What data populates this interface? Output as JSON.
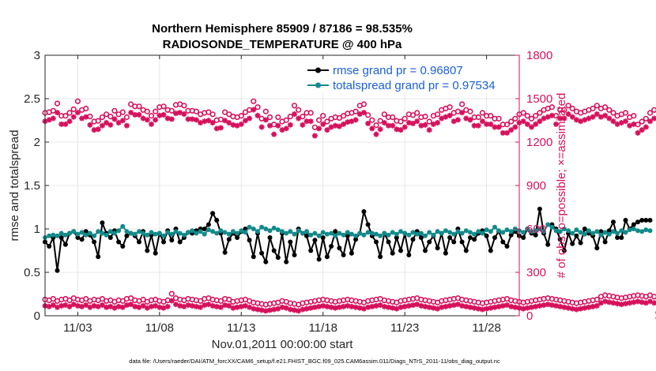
{
  "chart_data": {
    "type": "line",
    "title_line1": "Northern Hemisphere 85909 / 87186 = 98.535%",
    "title_line2": "RADIOSONDE_TEMPERATURE @ 400 hPa",
    "xlabel": "Nov.01,2011 00:00:00 start",
    "ylabel_left": "rmse and totalspread",
    "ylabel_right": "# of obs: o=possible; ×=assimilated",
    "footnote": "data file: /Users/raeder/DAI/ATM_forcXX/CAM6_setup/f.e21.FHIST_BGC.f09_025.CAM6assim.011/Diags_NTrS_2011-11/obs_diag_output.nc",
    "xlim": [
      1,
      30
    ],
    "ylim_left": [
      0,
      3
    ],
    "ylim_right": [
      0,
      1800
    ],
    "x_ticks": [
      3,
      8,
      13,
      18,
      23,
      28
    ],
    "x_tick_labels": [
      "11/03",
      "11/08",
      "11/13",
      "11/18",
      "11/23",
      "11/28"
    ],
    "y_left_ticks": [
      0,
      0.5,
      1,
      1.5,
      2,
      2.5,
      3
    ],
    "y_left_tick_labels": [
      "0",
      "0.5",
      "1",
      "1.5",
      "2",
      "2.5",
      "3"
    ],
    "y_right_ticks": [
      0,
      300,
      600,
      900,
      1200,
      1500,
      1800
    ],
    "y_right_tick_labels": [
      "0",
      "300",
      "600",
      "900",
      "1200",
      "1500",
      "1800"
    ],
    "grid": true,
    "legend": {
      "location": "top-right",
      "rmse_label": "rmse grand pr = 0.96807",
      "spread_label": "totalspread grand pr = 0.97534"
    },
    "colors": {
      "rmse": "#000000",
      "totalspread": "#138a8a",
      "obs": "#d6115c",
      "grid": "#e0e0e0",
      "legend_text": "#1a5fd6"
    },
    "x_start": 1,
    "x_step": 0.25,
    "series": [
      {
        "name": "rmse",
        "axis": "left",
        "values": [
          0.85,
          0.8,
          0.9,
          0.52,
          0.9,
          0.82,
          0.95,
          0.97,
          0.9,
          0.88,
          0.97,
          0.93,
          0.85,
          0.68,
          1.07,
          0.95,
          0.9,
          0.98,
          0.85,
          0.8,
          0.92,
          0.95,
          0.92,
          0.85,
          0.97,
          0.75,
          0.93,
          0.72,
          0.95,
          0.85,
          0.98,
          0.87,
          1.0,
          0.85,
          0.9,
          0.96,
          0.95,
          0.98,
          1.0,
          1.0,
          1.05,
          1.18,
          1.1,
          0.95,
          0.73,
          0.88,
          0.95,
          0.9,
          0.97,
          1.0,
          0.87,
          0.68,
          0.95,
          0.72,
          0.62,
          0.9,
          0.75,
          0.67,
          0.95,
          0.62,
          0.85,
          0.7,
          1.0,
          0.95,
          0.92,
          0.75,
          0.87,
          0.65,
          0.9,
          0.68,
          0.8,
          0.97,
          0.78,
          0.7,
          0.92,
          0.72,
          0.88,
          0.95,
          1.2,
          1.05,
          0.92,
          0.85,
          0.68,
          0.95,
          0.85,
          0.72,
          0.9,
          0.75,
          0.95,
          0.7,
          0.88,
          0.97,
          0.9,
          0.75,
          0.85,
          0.92,
          0.78,
          0.95,
          0.72,
          0.9,
          0.85,
          1.0,
          0.85,
          0.75,
          0.9,
          0.88,
          0.95,
          0.98,
          0.92,
          0.75,
          0.9,
          0.97,
          0.85,
          0.8,
          0.93,
          0.97,
          0.92,
          0.9,
          1.0,
          0.95,
          0.93,
          1.23,
          0.95,
          0.82,
          1.05,
          1.0,
          0.88,
          0.75,
          0.95,
          0.83,
          0.92,
          0.84,
          1.0,
          0.95,
          0.92,
          0.78,
          0.97,
          0.85,
          0.98,
          1.08,
          0.9,
          0.9,
          1.1,
          1.0,
          1.05,
          1.08,
          1.1,
          1.1,
          1.1
        ]
      },
      {
        "name": "totalspread",
        "axis": "left",
        "values": [
          0.9,
          0.92,
          0.93,
          0.92,
          0.95,
          0.93,
          0.95,
          0.97,
          0.94,
          0.96,
          0.93,
          0.95,
          0.92,
          0.97,
          0.95,
          0.93,
          0.97,
          0.95,
          0.98,
          1.03,
          0.97,
          0.95,
          0.94,
          0.97,
          0.95,
          0.93,
          0.96,
          0.94,
          0.95,
          0.92,
          0.96,
          0.94,
          0.97,
          0.95,
          0.93,
          0.96,
          0.98,
          0.95,
          0.97,
          0.94,
          0.99,
          0.97,
          0.95,
          0.98,
          0.96,
          0.94,
          0.97,
          0.95,
          0.98,
          0.96,
          1.02,
          1.0,
          0.97,
          1.02,
          1.0,
          0.98,
          1.01,
          0.99,
          0.97,
          0.95,
          0.97,
          0.94,
          0.98,
          0.95,
          0.97,
          0.93,
          0.95,
          0.92,
          0.96,
          0.94,
          0.95,
          0.92,
          0.95,
          0.93,
          0.96,
          0.94,
          0.92,
          0.95,
          0.93,
          0.96,
          0.95,
          0.94,
          0.92,
          0.95,
          0.93,
          0.96,
          0.94,
          0.97,
          0.95,
          0.93,
          0.96,
          0.94,
          0.95,
          0.92,
          0.96,
          0.93,
          0.97,
          0.95,
          0.98,
          0.96,
          0.94,
          0.97,
          0.95,
          0.98,
          0.96,
          0.94,
          0.97,
          0.95,
          0.99,
          0.97,
          1.02,
          0.98,
          0.96,
          0.99,
          0.97,
          1.0,
          0.98,
          0.96,
          1.0,
          0.97,
          0.98,
          1.0,
          0.97,
          1.05,
          1.02,
          0.98,
          0.97,
          1.0,
          0.98,
          0.95,
          0.99,
          0.96,
          0.94,
          0.98,
          0.95,
          0.97,
          0.93,
          0.96,
          0.94,
          0.97,
          0.95,
          0.98,
          0.96,
          0.99,
          1.0,
          0.98,
          0.97,
          0.99,
          0.98
        ]
      },
      {
        "name": "obs_possible",
        "axis": "right",
        "marker": "circle",
        "values": [
          1380,
          1385,
          1395,
          1445,
          1360,
          1360,
          1380,
          1405,
          1460,
          1400,
          1410,
          1355,
          1320,
          1325,
          1350,
          1370,
          1355,
          1395,
          1370,
          1385,
          1350,
          1440,
          1425,
          1425,
          1400,
          1390,
          1360,
          1390,
          1420,
          1425,
          1400,
          1395,
          1435,
          1440,
          1430,
          1395,
          1395,
          1390,
          1370,
          1380,
          1385,
          1370,
          1330,
          1335,
          1385,
          1370,
          1355,
          1350,
          1360,
          1385,
          1400,
          1460,
          1420,
          1340,
          1390,
          1350,
          1300,
          1350,
          1320,
          1330,
          1355,
          1430,
          1400,
          1355,
          1380,
          1380,
          1280,
          1330,
          1360,
          1320,
          1340,
          1350,
          1345,
          1360,
          1375,
          1380,
          1390,
          1430,
          1440,
          1365,
          1330,
          1295,
          1325,
          1370,
          1350,
          1350,
          1325,
          1320,
          1340,
          1370,
          1365,
          1380,
          1350,
          1355,
          1320,
          1360,
          1370,
          1400,
          1410,
          1420,
          1380,
          1390,
          1440,
          1400,
          1390,
          1350,
          1350,
          1380,
          1360,
          1360,
          1340,
          1340,
          1300,
          1300,
          1320,
          1340,
          1370,
          1380,
          1360,
          1340,
          1360,
          1380,
          1400,
          1410,
          1420,
          1360,
          1400,
          1400,
          1430,
          1410,
          1390,
          1380,
          1390,
          1400,
          1410,
          1430,
          1410,
          1420,
          1400,
          1380,
          1360,
          1370,
          1380,
          1350,
          1360,
          1300,
          1320,
          1340,
          1380,
          1400
        ]
      },
      {
        "name": "obs_assimilated",
        "axis": "right",
        "marker": "asterisk",
        "values": [
          1360,
          1370,
          1380,
          1420,
          1340,
          1340,
          1360,
          1390,
          1420,
          1380,
          1390,
          1335,
          1300,
          1305,
          1330,
          1350,
          1335,
          1375,
          1350,
          1365,
          1330,
          1420,
          1405,
          1405,
          1380,
          1370,
          1340,
          1370,
          1400,
          1405,
          1380,
          1375,
          1415,
          1420,
          1410,
          1375,
          1375,
          1370,
          1350,
          1360,
          1365,
          1350,
          1310,
          1315,
          1365,
          1350,
          1335,
          1330,
          1340,
          1365,
          1380,
          1440,
          1400,
          1320,
          1370,
          1330,
          1270,
          1330,
          1300,
          1310,
          1335,
          1410,
          1380,
          1335,
          1360,
          1360,
          1260,
          1310,
          1340,
          1300,
          1320,
          1330,
          1325,
          1340,
          1355,
          1360,
          1370,
          1410,
          1420,
          1345,
          1310,
          1270,
          1305,
          1350,
          1330,
          1330,
          1305,
          1300,
          1320,
          1350,
          1345,
          1360,
          1330,
          1335,
          1300,
          1340,
          1350,
          1380,
          1390,
          1400,
          1360,
          1370,
          1420,
          1380,
          1370,
          1330,
          1330,
          1360,
          1340,
          1340,
          1320,
          1320,
          1280,
          1280,
          1300,
          1320,
          1350,
          1360,
          1340,
          1320,
          1340,
          1360,
          1380,
          1390,
          1400,
          1340,
          1380,
          1380,
          1410,
          1390,
          1370,
          1360,
          1370,
          1380,
          1390,
          1410,
          1390,
          1400,
          1380,
          1360,
          1340,
          1350,
          1360,
          1330,
          1340,
          1280,
          1300,
          1320,
          1360,
          1380
        ]
      },
      {
        "name": "obs_low_possible",
        "axis": "right",
        "marker": "circle",
        "values": [
          90,
          85,
          95,
          80,
          90,
          95,
          85,
          100,
          90,
          85,
          95,
          80,
          90,
          85,
          95,
          80,
          85,
          75,
          85,
          80,
          95,
          100,
          85,
          80,
          90,
          75,
          85,
          90,
          80,
          75,
          85,
          130,
          100,
          90,
          85,
          95,
          90,
          85,
          80,
          95,
          100,
          90,
          85,
          80,
          95,
          90,
          75,
          80,
          85,
          90,
          80,
          70,
          65,
          60,
          55,
          60,
          65,
          70,
          80,
          75,
          65,
          60,
          55,
          65,
          70,
          75,
          80,
          85,
          90,
          85,
          80,
          75,
          80,
          85,
          90,
          85,
          80,
          75,
          70,
          80,
          85,
          90,
          95,
          85,
          80,
          75,
          70,
          80,
          85,
          90,
          95,
          100,
          90,
          85,
          80,
          75,
          70,
          80,
          85,
          90,
          95,
          100,
          90,
          85,
          80,
          75,
          70,
          65,
          70,
          75,
          80,
          85,
          90,
          95,
          85,
          80,
          75,
          70,
          75,
          80,
          85,
          90,
          95,
          100,
          95,
          90,
          85,
          80,
          75,
          70,
          65,
          70,
          75,
          80,
          85,
          90,
          110,
          120,
          115,
          110,
          105,
          100,
          105,
          110,
          115,
          120,
          115,
          110,
          120,
          110,
          0
        ]
      },
      {
        "name": "obs_low_assimilated",
        "axis": "right",
        "marker": "asterisk",
        "values": [
          85,
          80,
          90,
          75,
          85,
          90,
          80,
          95,
          85,
          80,
          90,
          75,
          85,
          80,
          90,
          75,
          80,
          70,
          80,
          75,
          90,
          95,
          80,
          75,
          85,
          70,
          80,
          85,
          75,
          70,
          80,
          120,
          95,
          85,
          80,
          90,
          85,
          80,
          75,
          90,
          95,
          85,
          80,
          75,
          90,
          85,
          70,
          75,
          80,
          85,
          75,
          65,
          60,
          55,
          50,
          55,
          60,
          65,
          75,
          70,
          60,
          55,
          50,
          60,
          65,
          70,
          75,
          80,
          85,
          80,
          75,
          70,
          75,
          80,
          85,
          80,
          75,
          70,
          65,
          75,
          80,
          85,
          90,
          80,
          75,
          70,
          65,
          75,
          80,
          85,
          90,
          95,
          85,
          80,
          75,
          70,
          65,
          75,
          80,
          85,
          90,
          95,
          85,
          80,
          75,
          70,
          65,
          60,
          65,
          70,
          75,
          80,
          85,
          90,
          80,
          75,
          70,
          65,
          70,
          75,
          80,
          85,
          90,
          95,
          90,
          85,
          80,
          75,
          70,
          65,
          60,
          65,
          70,
          75,
          80,
          85,
          105,
          115,
          110,
          105,
          100,
          95,
          100,
          105,
          110,
          115,
          110,
          105,
          115,
          105,
          0
        ]
      }
    ]
  }
}
